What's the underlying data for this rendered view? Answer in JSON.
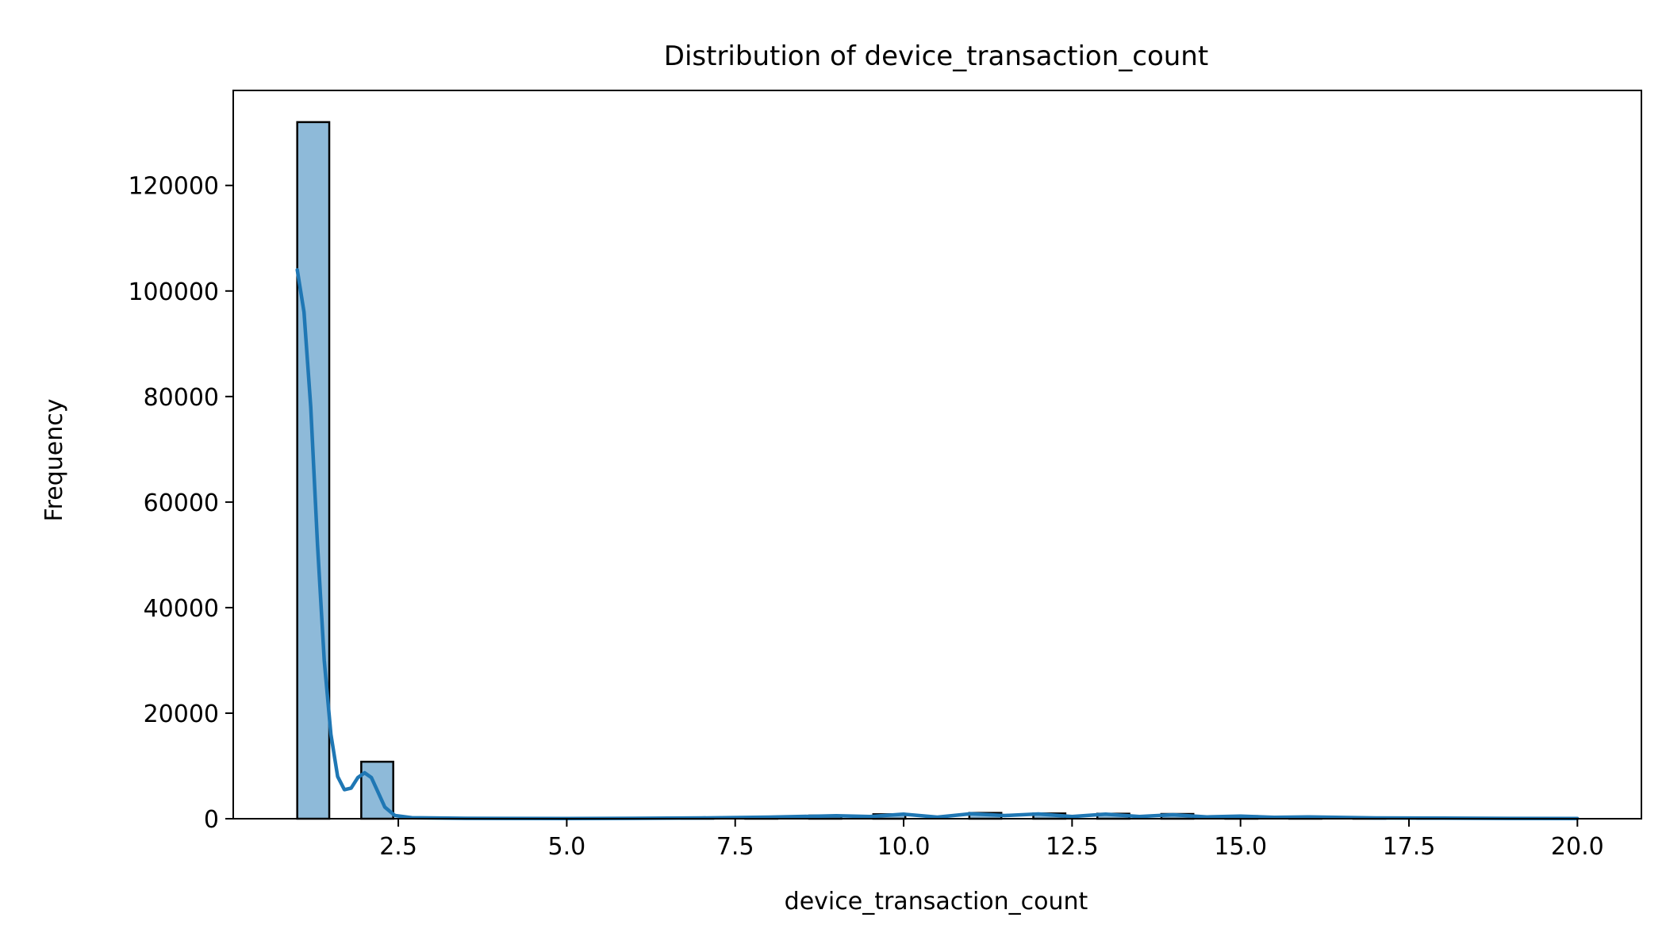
{
  "chart_data": {
    "type": "bar",
    "title": "Distribution of device_transaction_count",
    "xlabel": "device_transaction_count",
    "ylabel": "Frequency",
    "xlim": [
      0.05,
      20.95
    ],
    "ylim": [
      0,
      138000
    ],
    "xticks": [
      2.5,
      5.0,
      7.5,
      10.0,
      12.5,
      15.0,
      17.5,
      20.0
    ],
    "xtick_labels": [
      "2.5",
      "5.0",
      "7.5",
      "10.0",
      "12.5",
      "15.0",
      "17.5",
      "20.0"
    ],
    "yticks": [
      0,
      20000,
      40000,
      60000,
      80000,
      100000,
      120000
    ],
    "ytick_labels": [
      "0",
      "20000",
      "40000",
      "60000",
      "80000",
      "100000",
      "120000"
    ],
    "bins": [
      {
        "x0": 1.0,
        "x1": 1.475,
        "count": 132000
      },
      {
        "x0": 1.95,
        "x1": 2.425,
        "count": 10800
      },
      {
        "x0": 6.7,
        "x1": 7.175,
        "count": 150
      },
      {
        "x0": 7.65,
        "x1": 8.125,
        "count": 300
      },
      {
        "x0": 8.6,
        "x1": 9.075,
        "count": 600
      },
      {
        "x0": 9.55,
        "x1": 10.025,
        "count": 850
      },
      {
        "x0": 10.975,
        "x1": 11.45,
        "count": 1100
      },
      {
        "x0": 11.925,
        "x1": 12.4,
        "count": 1000
      },
      {
        "x0": 12.875,
        "x1": 13.35,
        "count": 950
      },
      {
        "x0": 13.825,
        "x1": 14.3,
        "count": 900
      },
      {
        "x0": 14.775,
        "x1": 15.25,
        "count": 500
      },
      {
        "x0": 15.725,
        "x1": 16.2,
        "count": 400
      },
      {
        "x0": 16.675,
        "x1": 17.15,
        "count": 200
      },
      {
        "x0": 17.625,
        "x1": 18.1,
        "count": 120
      },
      {
        "x0": 18.575,
        "x1": 19.05,
        "count": 80
      },
      {
        "x0": 19.525,
        "x1": 20.0,
        "count": 50
      }
    ],
    "kde": [
      [
        1.0,
        104000
      ],
      [
        1.1,
        96000
      ],
      [
        1.2,
        78000
      ],
      [
        1.3,
        52000
      ],
      [
        1.4,
        30000
      ],
      [
        1.5,
        16000
      ],
      [
        1.6,
        8000
      ],
      [
        1.7,
        5500
      ],
      [
        1.8,
        5800
      ],
      [
        1.9,
        7800
      ],
      [
        2.0,
        8700
      ],
      [
        2.1,
        7800
      ],
      [
        2.2,
        5000
      ],
      [
        2.3,
        2200
      ],
      [
        2.45,
        600
      ],
      [
        2.7,
        200
      ],
      [
        3.5,
        80
      ],
      [
        5.0,
        40
      ],
      [
        6.0,
        80
      ],
      [
        7.0,
        150
      ],
      [
        8.0,
        300
      ],
      [
        9.0,
        550
      ],
      [
        9.5,
        400
      ],
      [
        10.0,
        850
      ],
      [
        10.5,
        300
      ],
      [
        11.0,
        950
      ],
      [
        11.5,
        600
      ],
      [
        12.0,
        900
      ],
      [
        12.5,
        400
      ],
      [
        13.0,
        850
      ],
      [
        13.5,
        400
      ],
      [
        14.0,
        750
      ],
      [
        14.5,
        350
      ],
      [
        15.0,
        500
      ],
      [
        15.5,
        250
      ],
      [
        16.0,
        350
      ],
      [
        17.0,
        150
      ],
      [
        18.0,
        100
      ],
      [
        19.0,
        60
      ],
      [
        20.0,
        40
      ]
    ],
    "bar_color": "#8ebad9",
    "bar_edge_color": "#000000",
    "line_color": "#1f77b4",
    "grid": false,
    "legend": "none"
  }
}
